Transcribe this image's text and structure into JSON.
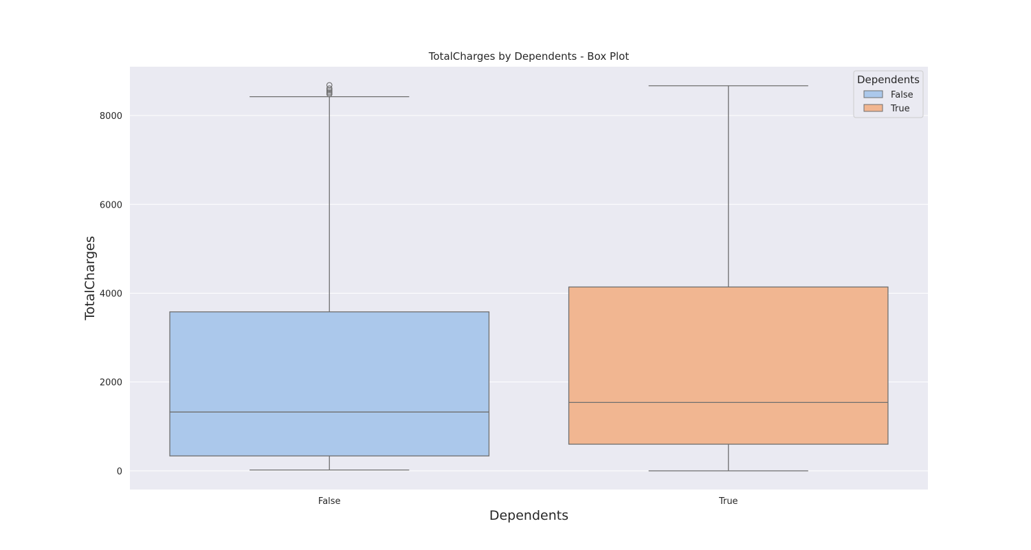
{
  "chart_data": {
    "type": "box",
    "title": "TotalCharges by Dependents - Box Plot",
    "xlabel": "Dependents",
    "ylabel": "TotalCharges",
    "ylim": [
      -420,
      9100
    ],
    "yticks": [
      0,
      2000,
      4000,
      6000,
      8000
    ],
    "grid": true,
    "categories": [
      "False",
      "True"
    ],
    "boxes": [
      {
        "category": "False",
        "whisker_low": 19,
        "q1": 336,
        "median": 1324,
        "q3": 3580,
        "whisker_high": 8425,
        "outliers": [
          8480,
          8510,
          8540,
          8575,
          8610,
          8684
        ],
        "color": "#abc8eb"
      },
      {
        "category": "True",
        "whisker_low": 0,
        "q1": 600,
        "median": 1540,
        "q3": 4140,
        "whisker_high": 8670,
        "outliers": [],
        "color": "#f1b691"
      }
    ],
    "legend": {
      "title": "Dependents",
      "position": "top-right",
      "entries": [
        {
          "label": "False",
          "color": "#abc8eb"
        },
        {
          "label": "True",
          "color": "#f1b691"
        }
      ]
    },
    "colors": {
      "plot_background": "#eaeaf2",
      "grid": "#ffffff",
      "line": "#6e6e6e"
    }
  }
}
